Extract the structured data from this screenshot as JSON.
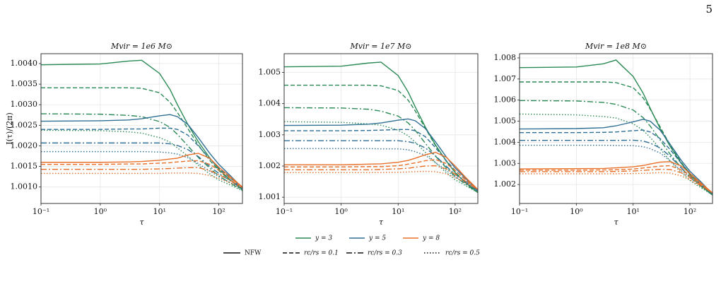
{
  "page_number": "5",
  "legend": {
    "colors": [
      {
        "name": "y = 3",
        "color": "#2a8a55"
      },
      {
        "name": "y = 5",
        "color": "#2f6f94"
      },
      {
        "name": "y = 8",
        "color": "#e8702a"
      }
    ],
    "styles": [
      {
        "name": "NFW",
        "dash": "solid"
      },
      {
        "name": "rc/rs = 0.1",
        "dash": "6,3"
      },
      {
        "name": "rc/rs = 0.3",
        "dash": "8,3,2,3"
      },
      {
        "name": "rc/rs = 0.5",
        "dash": "1.5,2.5"
      }
    ]
  },
  "chart_data": [
    {
      "type": "line",
      "title": "Mvir = 1e6 M⊙",
      "xlabel": "τ",
      "ylabel": "I(τ)/(2π)",
      "xscale": "log",
      "grid": true,
      "xlim": [
        0.1,
        250
      ],
      "ylim": [
        1.0006,
        1.00424
      ],
      "xticks": [
        {
          "value": 0.1,
          "label": "10⁻¹"
        },
        {
          "value": 1,
          "label": "10⁰"
        },
        {
          "value": 10,
          "label": "10¹"
        },
        {
          "value": 100,
          "label": "10²"
        }
      ],
      "yticks": [
        {
          "value": 1.001,
          "label": "1.0010"
        },
        1.0015,
        {
          "value": 1.002,
          "label": "1.0020"
        },
        1.0025,
        {
          "value": 1.003,
          "label": "1.0030"
        },
        1.0035,
        {
          "value": 1.004,
          "label": "1.0040"
        }
      ],
      "x": [
        0.1,
        1,
        3,
        5,
        10,
        15,
        20,
        30,
        45,
        70,
        100,
        150,
        250
      ],
      "series": [
        {
          "color": "#2a8a55",
          "dash": "solid",
          "values": [
            1.00397,
            1.00399,
            1.00406,
            1.00408,
            1.00376,
            1.00337,
            1.003,
            1.00252,
            1.0021,
            1.00171,
            1.00143,
            1.00119,
            1.00095
          ]
        },
        {
          "color": "#2a8a55",
          "dash": "6,3",
          "values": [
            1.00341,
            1.00341,
            1.00341,
            1.0034,
            1.00329,
            1.00306,
            1.00281,
            1.00242,
            1.00202,
            1.00165,
            1.0014,
            1.00118,
            1.00093
          ]
        },
        {
          "color": "#2a8a55",
          "dash": "8,3,2,3",
          "values": [
            1.00278,
            1.00277,
            1.00274,
            1.00271,
            1.00259,
            1.00245,
            1.00228,
            1.002,
            1.00172,
            1.00146,
            1.00127,
            1.00111,
            1.00092
          ]
        },
        {
          "color": "#2a8a55",
          "dash": "1.5,2.5",
          "values": [
            1.00238,
            1.00237,
            1.00234,
            1.00231,
            1.0022,
            1.00209,
            1.00195,
            1.00175,
            1.00153,
            1.00132,
            1.00117,
            1.00106,
            1.00091
          ]
        },
        {
          "color": "#2f6f94",
          "dash": "solid",
          "values": [
            1.0026,
            1.00261,
            1.00263,
            1.00266,
            1.00273,
            1.00276,
            1.00271,
            1.00252,
            1.0022,
            1.00182,
            1.00155,
            1.0013,
            1.00098
          ]
        },
        {
          "color": "#2f6f94",
          "dash": "6,3",
          "values": [
            1.0024,
            1.0024,
            1.00241,
            1.00241,
            1.00243,
            1.00243,
            1.0024,
            1.00226,
            1.002,
            1.00169,
            1.00146,
            1.00124,
            1.00097
          ]
        },
        {
          "color": "#2f6f94",
          "dash": "8,3,2,3",
          "values": [
            1.00207,
            1.00207,
            1.00207,
            1.00207,
            1.00207,
            1.00205,
            1.00201,
            1.00191,
            1.00174,
            1.0015,
            1.00133,
            1.00117,
            1.00096
          ]
        },
        {
          "color": "#2f6f94",
          "dash": "1.5,2.5",
          "values": [
            1.00186,
            1.00186,
            1.00186,
            1.00186,
            1.00185,
            1.00183,
            1.0018,
            1.00171,
            1.00157,
            1.00139,
            1.00125,
            1.00112,
            1.00095
          ]
        },
        {
          "color": "#e8702a",
          "dash": "solid",
          "values": [
            1.0016,
            1.0016,
            1.00161,
            1.00162,
            1.00165,
            1.00168,
            1.0017,
            1.00178,
            1.00182,
            1.0017,
            1.00148,
            1.00127,
            1.001
          ]
        },
        {
          "color": "#e8702a",
          "dash": "6,3",
          "values": [
            1.00155,
            1.00155,
            1.00156,
            1.00156,
            1.00158,
            1.00159,
            1.00161,
            1.00163,
            1.00164,
            1.00155,
            1.00141,
            1.00123,
            1.001
          ]
        },
        {
          "color": "#e8702a",
          "dash": "8,3,2,3",
          "values": [
            1.00143,
            1.00143,
            1.00143,
            1.00143,
            1.00144,
            1.00145,
            1.00146,
            1.00147,
            1.00147,
            1.0014,
            1.0013,
            1.00117,
            1.00099
          ]
        },
        {
          "color": "#e8702a",
          "dash": "1.5,2.5",
          "values": [
            1.00133,
            1.00133,
            1.00133,
            1.00133,
            1.00133,
            1.00134,
            1.00134,
            1.00134,
            1.00133,
            1.00128,
            1.00121,
            1.00111,
            1.00098
          ]
        }
      ]
    },
    {
      "type": "line",
      "title": "Mvir = 1e7 M⊙",
      "xlabel": "τ",
      "xscale": "log",
      "grid": true,
      "xlim": [
        0.1,
        250
      ],
      "ylim": [
        1.0008,
        1.0056
      ],
      "xticks": [
        {
          "value": 0.1,
          "label": "10⁻¹"
        },
        {
          "value": 1,
          "label": "10⁰"
        },
        {
          "value": 10,
          "label": "10¹"
        },
        {
          "value": 100,
          "label": "10²"
        }
      ],
      "yticks": [
        1.001,
        1.002,
        1.003,
        1.004,
        1.005
      ],
      "x": [
        0.1,
        1,
        3,
        5,
        10,
        15,
        20,
        30,
        45,
        70,
        100,
        150,
        250
      ],
      "series": [
        {
          "color": "#2a8a55",
          "dash": "solid",
          "values": [
            1.00518,
            1.0052,
            1.0053,
            1.00533,
            1.0049,
            1.00437,
            1.00389,
            1.00325,
            1.00268,
            1.00216,
            1.00179,
            1.00147,
            1.00115
          ]
        },
        {
          "color": "#2a8a55",
          "dash": "6,3",
          "values": [
            1.00459,
            1.00459,
            1.00459,
            1.00457,
            1.00442,
            1.00411,
            1.00376,
            1.00321,
            1.00266,
            1.00215,
            1.0018,
            1.00149,
            1.00115
          ]
        },
        {
          "color": "#2a8a55",
          "dash": "8,3,2,3",
          "values": [
            1.00387,
            1.00386,
            1.00382,
            1.00376,
            1.0036,
            1.00338,
            1.00314,
            1.00273,
            1.00232,
            1.00194,
            1.00167,
            1.00142,
            1.00115
          ]
        },
        {
          "color": "#2a8a55",
          "dash": "1.5,2.5",
          "values": [
            1.00342,
            1.0034,
            1.00335,
            1.00331,
            1.00315,
            1.00297,
            1.00276,
            1.00244,
            1.0021,
            1.00179,
            1.00156,
            1.00138,
            1.00115
          ]
        },
        {
          "color": "#2f6f94",
          "dash": "solid",
          "values": [
            1.0033,
            1.00331,
            1.00334,
            1.00338,
            1.00347,
            1.00351,
            1.00345,
            1.0032,
            1.00278,
            1.00229,
            1.00194,
            1.00162,
            1.0012
          ]
        },
        {
          "color": "#2f6f94",
          "dash": "6,3",
          "values": [
            1.00313,
            1.00313,
            1.00314,
            1.00315,
            1.00317,
            1.00317,
            1.00313,
            1.00294,
            1.00259,
            1.00217,
            1.00186,
            1.00157,
            1.0012
          ]
        },
        {
          "color": "#2f6f94",
          "dash": "8,3,2,3",
          "values": [
            1.00281,
            1.00281,
            1.00281,
            1.00281,
            1.00281,
            1.00278,
            1.00273,
            1.00258,
            1.00233,
            1.00199,
            1.00173,
            1.00151,
            1.0012
          ]
        },
        {
          "color": "#2f6f94",
          "dash": "1.5,2.5",
          "values": [
            1.00256,
            1.00256,
            1.00256,
            1.00255,
            1.00255,
            1.00252,
            1.00246,
            1.00234,
            1.00212,
            1.00185,
            1.00165,
            1.00146,
            1.0012
          ]
        },
        {
          "color": "#e8702a",
          "dash": "solid",
          "values": [
            1.00204,
            1.00204,
            1.00206,
            1.00207,
            1.00212,
            1.00218,
            1.00225,
            1.00236,
            1.00244,
            1.00228,
            1.002,
            1.00165,
            1.00125
          ]
        },
        {
          "color": "#e8702a",
          "dash": "6,3",
          "values": [
            1.00197,
            1.00197,
            1.00198,
            1.00198,
            1.00201,
            1.00206,
            1.0021,
            1.00217,
            1.00221,
            1.00208,
            1.00186,
            1.00158,
            1.00125
          ]
        },
        {
          "color": "#e8702a",
          "dash": "8,3,2,3",
          "values": [
            1.00188,
            1.00188,
            1.00188,
            1.00189,
            1.00191,
            1.00193,
            1.00196,
            1.002,
            1.00201,
            1.00191,
            1.00174,
            1.00152,
            1.00125
          ]
        },
        {
          "color": "#e8702a",
          "dash": "1.5,2.5",
          "values": [
            1.00179,
            1.00179,
            1.00179,
            1.00179,
            1.0018,
            1.00181,
            1.00182,
            1.00183,
            1.00182,
            1.00175,
            1.00163,
            1.00147,
            1.00125
          ]
        }
      ]
    },
    {
      "type": "line",
      "title": "Mvir = 1e8 M⊙",
      "xlabel": "τ",
      "xscale": "log",
      "grid": true,
      "xlim": [
        0.1,
        250
      ],
      "ylim": [
        1.0011,
        1.0082
      ],
      "xticks": [
        {
          "value": 0.1,
          "label": "10⁻¹"
        },
        {
          "value": 1,
          "label": "10⁰"
        },
        {
          "value": 10,
          "label": "10¹"
        },
        {
          "value": 100,
          "label": "10²"
        }
      ],
      "yticks": [
        1.002,
        1.003,
        1.004,
        1.005,
        1.006,
        1.007,
        1.008
      ],
      "x": [
        0.1,
        1,
        3,
        5,
        10,
        15,
        20,
        30,
        45,
        70,
        100,
        150,
        250
      ],
      "series": [
        {
          "color": "#2a8a55",
          "dash": "solid",
          "values": [
            1.00754,
            1.00757,
            1.00772,
            1.0079,
            1.00712,
            1.00633,
            1.00561,
            1.00464,
            1.0038,
            1.00301,
            1.00247,
            1.00198,
            1.0015
          ]
        },
        {
          "color": "#2a8a55",
          "dash": "6,3",
          "values": [
            1.00686,
            1.00686,
            1.00686,
            1.00683,
            1.00659,
            1.00611,
            1.00557,
            1.00472,
            1.00386,
            1.00305,
            1.00252,
            1.00204,
            1.0015
          ]
        },
        {
          "color": "#2a8a55",
          "dash": "8,3,2,3",
          "values": [
            1.00598,
            1.00596,
            1.00589,
            1.0058,
            1.00553,
            1.00517,
            1.00477,
            1.0041,
            1.00343,
            1.0028,
            1.00235,
            1.00195,
            1.0015
          ]
        },
        {
          "color": "#2a8a55",
          "dash": "1.5,2.5",
          "values": [
            1.00534,
            1.0053,
            1.00522,
            1.00515,
            1.00488,
            1.00457,
            1.00423,
            1.00369,
            1.00311,
            1.00258,
            1.00219,
            1.00188,
            1.0015
          ]
        },
        {
          "color": "#2f6f94",
          "dash": "solid",
          "values": [
            1.00463,
            1.00465,
            1.00469,
            1.00478,
            1.00497,
            1.00509,
            1.005,
            1.00457,
            1.0039,
            1.00315,
            1.00263,
            1.00217,
            1.00155
          ]
        },
        {
          "color": "#2f6f94",
          "dash": "6,3",
          "values": [
            1.00446,
            1.00446,
            1.00447,
            1.00449,
            1.00455,
            1.00458,
            1.00449,
            1.00417,
            1.00365,
            1.00301,
            1.00254,
            1.0021,
            1.00155
          ]
        },
        {
          "color": "#2f6f94",
          "dash": "8,3,2,3",
          "values": [
            1.00409,
            1.00409,
            1.00409,
            1.00409,
            1.0041,
            1.00406,
            1.00396,
            1.00373,
            1.00333,
            1.00279,
            1.00239,
            1.00203,
            1.00155
          ]
        },
        {
          "color": "#2f6f94",
          "dash": "1.5,2.5",
          "values": [
            1.00386,
            1.00386,
            1.00386,
            1.00385,
            1.00384,
            1.00379,
            1.0037,
            1.00349,
            1.00312,
            1.00266,
            1.00231,
            1.00199,
            1.00155
          ]
        },
        {
          "color": "#e8702a",
          "dash": "solid",
          "values": [
            1.00274,
            1.00275,
            1.00276,
            1.00279,
            1.00284,
            1.0029,
            1.00297,
            1.00306,
            1.00308,
            1.00288,
            1.00253,
            1.00211,
            1.0016
          ]
        },
        {
          "color": "#e8702a",
          "dash": "6,3",
          "values": [
            1.00268,
            1.00268,
            1.00269,
            1.0027,
            1.00273,
            1.00278,
            1.00282,
            1.00287,
            1.00289,
            1.0027,
            1.00242,
            1.00205,
            1.0016
          ]
        },
        {
          "color": "#e8702a",
          "dash": "8,3,2,3",
          "values": [
            1.00261,
            1.00261,
            1.00261,
            1.00262,
            1.00264,
            1.00267,
            1.00269,
            1.00272,
            1.00271,
            1.00256,
            1.00232,
            1.002,
            1.0016
          ]
        },
        {
          "color": "#e8702a",
          "dash": "1.5,2.5",
          "values": [
            1.00251,
            1.00251,
            1.00251,
            1.00251,
            1.00252,
            1.00253,
            1.00254,
            1.00256,
            1.00254,
            1.00241,
            1.00222,
            1.00195,
            1.0016
          ]
        }
      ]
    }
  ]
}
